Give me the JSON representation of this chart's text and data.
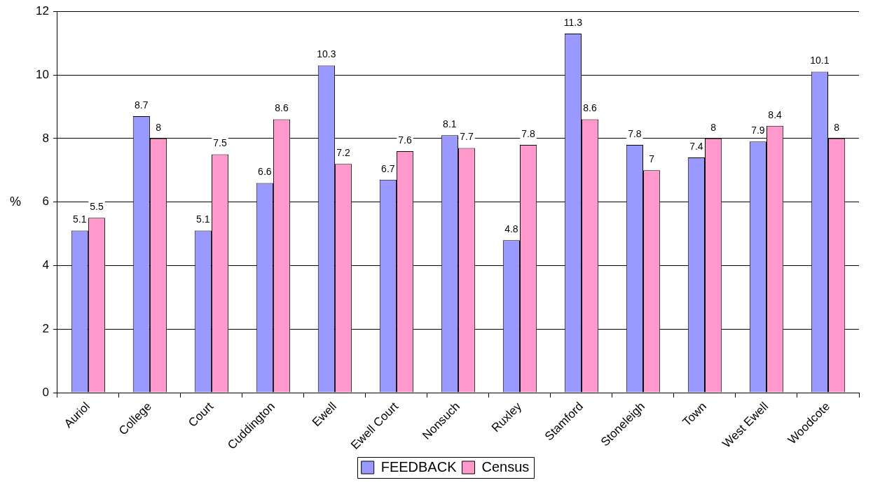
{
  "chart_data": {
    "type": "bar",
    "ylabel": "%",
    "categories": [
      "Auriol",
      "College",
      "Court",
      "Cuddington",
      "Ewell",
      "Ewell Court",
      "Nonsuch",
      "Ruxley",
      "Stamford",
      "Stoneleigh",
      "Town",
      "West Ewell",
      "Woodcote"
    ],
    "series": [
      {
        "name": "FEEDBACK",
        "color": "#9999ff",
        "values": [
          5.1,
          8.7,
          5.1,
          6.6,
          10.3,
          6.7,
          8.1,
          4.8,
          11.3,
          7.8,
          7.4,
          7.9,
          10.1
        ]
      },
      {
        "name": "Census",
        "color": "#ff99cc",
        "values": [
          5.5,
          8,
          7.5,
          8.6,
          7.2,
          7.6,
          7.7,
          7.8,
          8.6,
          7,
          8,
          8.4,
          8
        ]
      }
    ],
    "ylim": [
      0,
      12
    ],
    "yticks": [
      0,
      2,
      4,
      6,
      8,
      10,
      12
    ],
    "grid": "y",
    "legend": "bottom",
    "data_labels": true
  }
}
